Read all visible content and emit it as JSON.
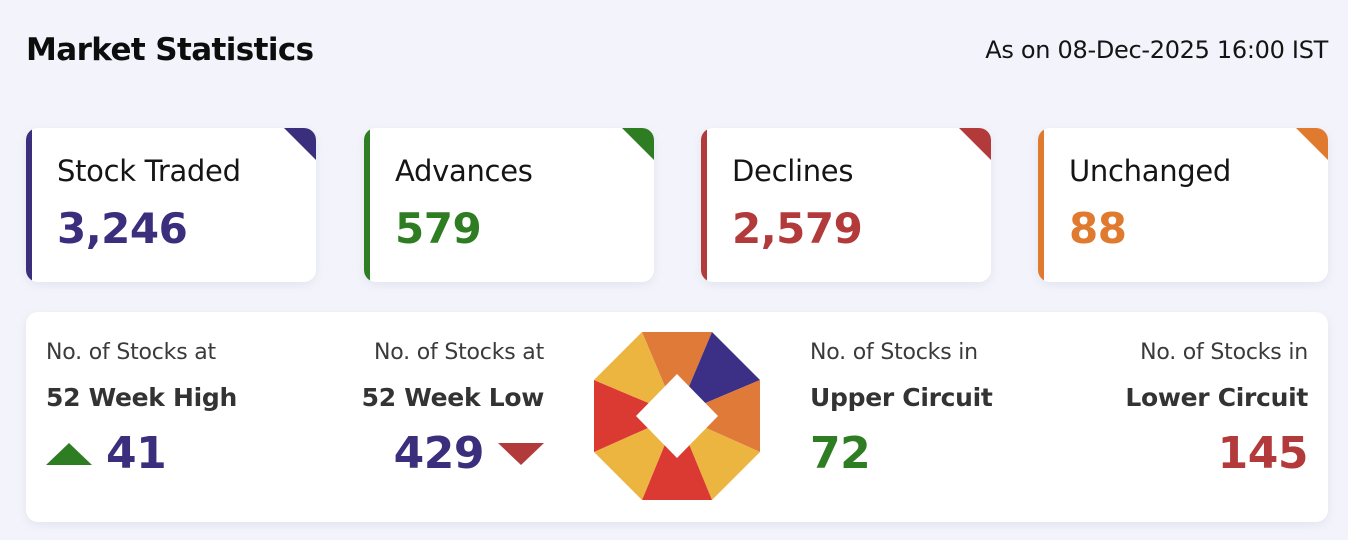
{
  "header": {
    "title": "Market Statistics",
    "timestamp": "As on 08-Dec-2025 16:00 IST"
  },
  "cards": [
    {
      "label": "Stock Traded",
      "value": "3,246",
      "color": "#3b2f7d"
    },
    {
      "label": "Advances",
      "value": "579",
      "color": "#2e7d22"
    },
    {
      "label": "Declines",
      "value": "2,579",
      "color": "#b33a3a"
    },
    {
      "label": "Unchanged",
      "value": "88",
      "color": "#e07a2f"
    }
  ],
  "panel": {
    "week52_high": {
      "sub": "No. of Stocks at",
      "main": "52 Week High",
      "value": "41",
      "icon": "triangle-up-icon"
    },
    "week52_low": {
      "sub": "No. of Stocks at",
      "main": "52 Week Low",
      "value": "429",
      "icon": "triangle-down-icon"
    },
    "upper_circuit": {
      "sub": "No. of Stocks in",
      "main": "Upper Circuit",
      "value": "72"
    },
    "lower_circuit": {
      "sub": "No. of Stocks in",
      "main": "Lower Circuit",
      "value": "145"
    },
    "logo_icon": "octagon-logo-icon"
  },
  "colors": {
    "indigo": "#3b2f7d",
    "green": "#2e7d22",
    "red": "#b33a3a",
    "orange": "#e07a2f",
    "background": "#f3f4fb"
  }
}
